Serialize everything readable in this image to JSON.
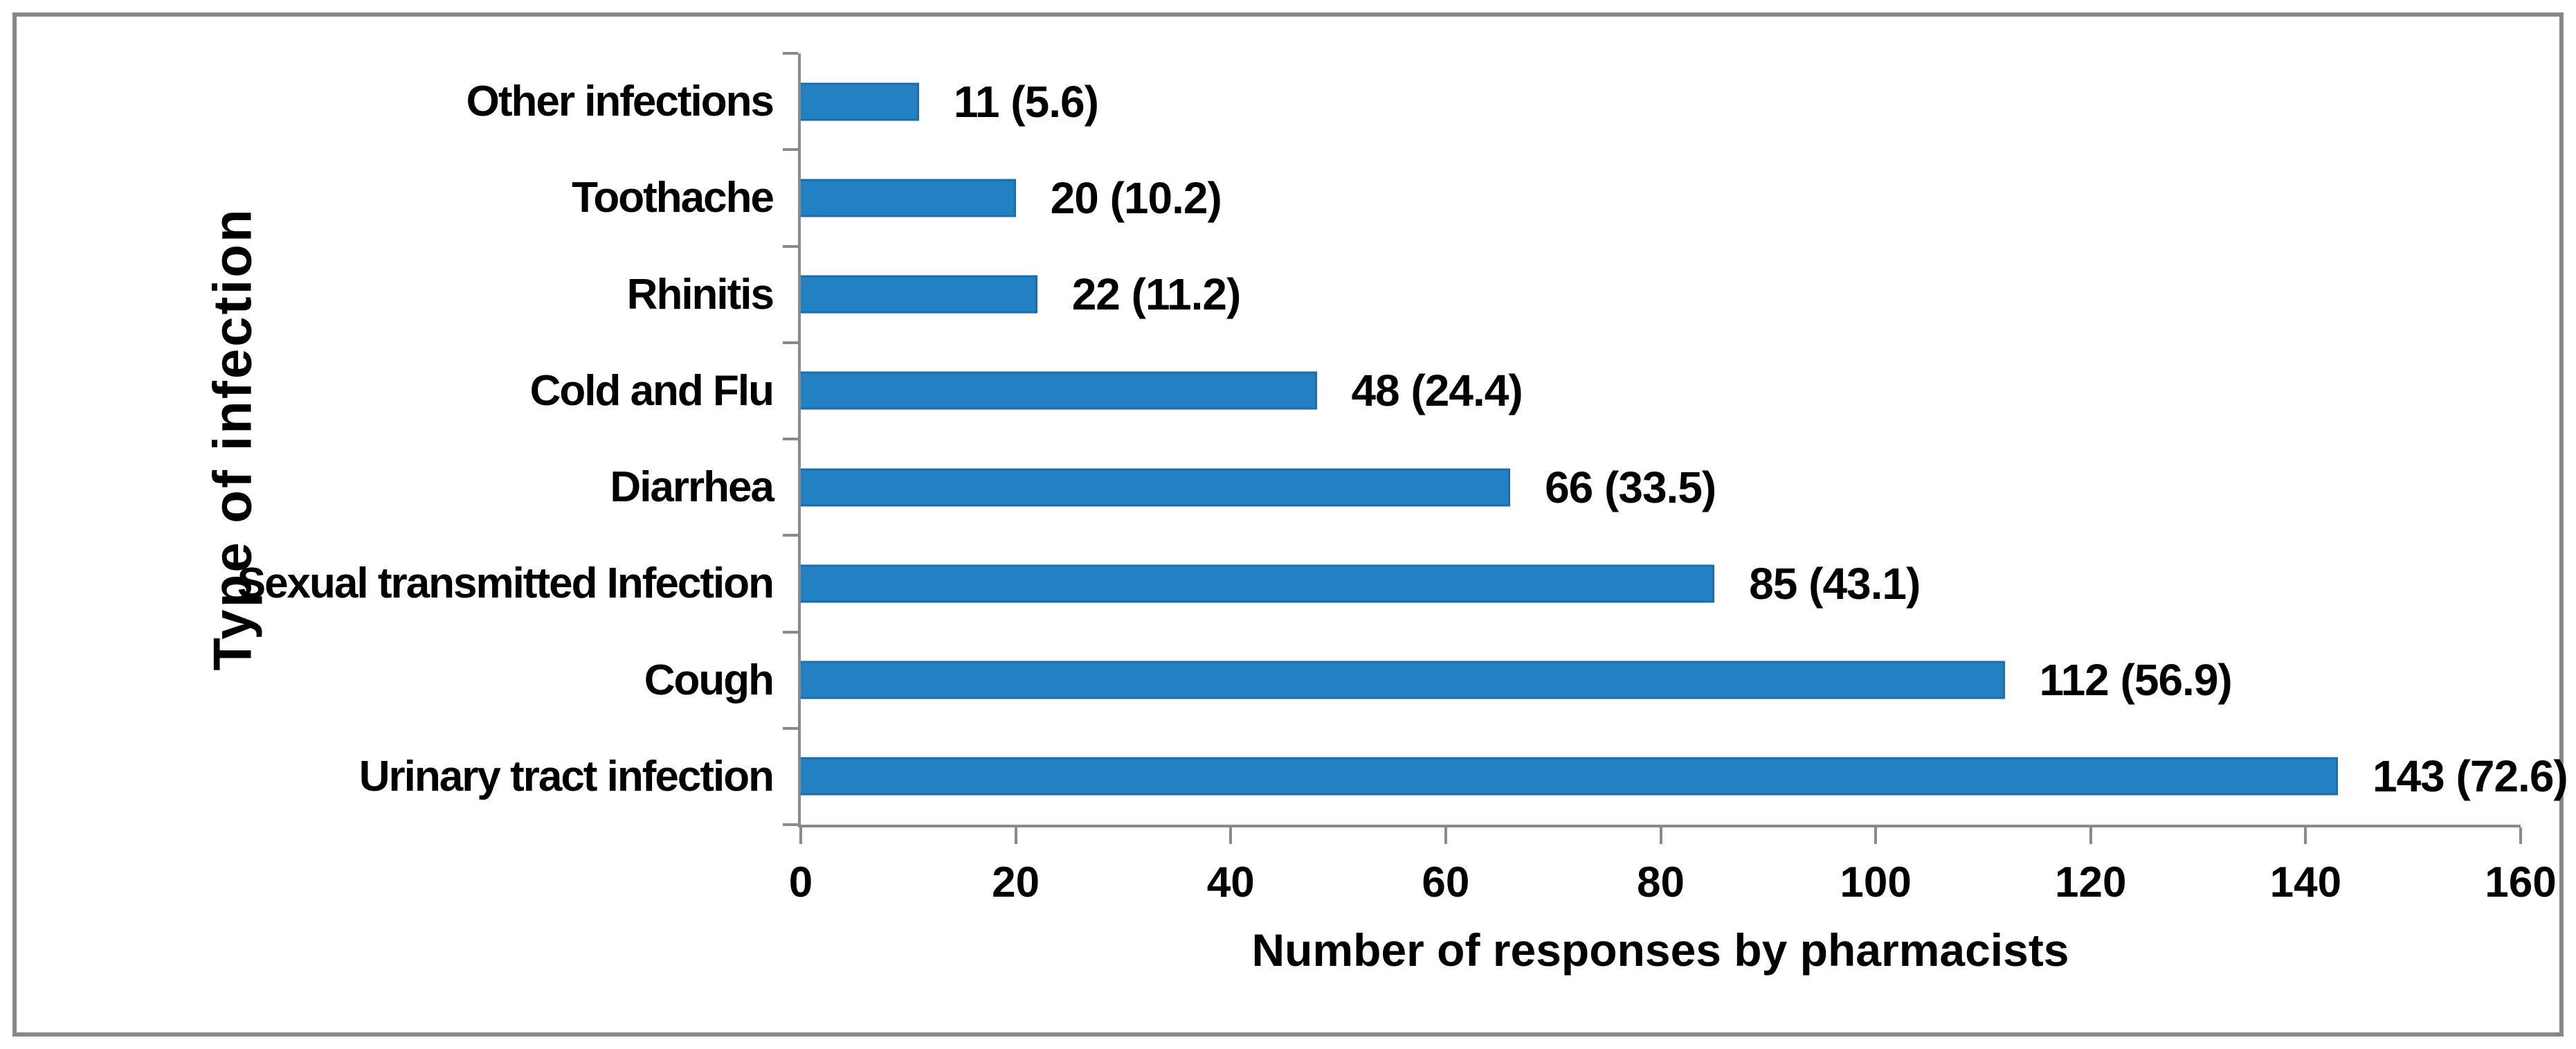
{
  "chart_data": {
    "type": "bar",
    "orientation": "horizontal",
    "title": "",
    "xlabel": "Number of responses by pharmacists",
    "ylabel": "Type of infection",
    "xlim": [
      0,
      160
    ],
    "xticks": [
      0,
      20,
      40,
      60,
      80,
      100,
      120,
      140,
      160
    ],
    "grid": false,
    "legend_position": "none",
    "categories": [
      "Other infections",
      "Toothache",
      "Rhinitis",
      "Cold and Flu",
      "Diarrhea",
      "Sexual transmitted Infection",
      "Cough",
      "Urinary tract infection"
    ],
    "values": [
      11,
      20,
      22,
      48,
      66,
      85,
      112,
      143
    ],
    "percentages": [
      5.6,
      10.2,
      11.2,
      24.4,
      33.5,
      43.1,
      56.9,
      72.6
    ],
    "data_labels": [
      "11 (5.6)",
      "20 (10.2)",
      "22 (11.2)",
      "48 (24.4)",
      "66 (33.5)",
      "85 (43.1)",
      "112 (56.9)",
      "143 (72.6)"
    ]
  },
  "colors": {
    "bar_fill": "#2381c3",
    "bar_border": "#1d6dab",
    "axis_line": "#8a8a8a",
    "text": "#000000",
    "frame_border": "#888888",
    "background": "#ffffff"
  }
}
